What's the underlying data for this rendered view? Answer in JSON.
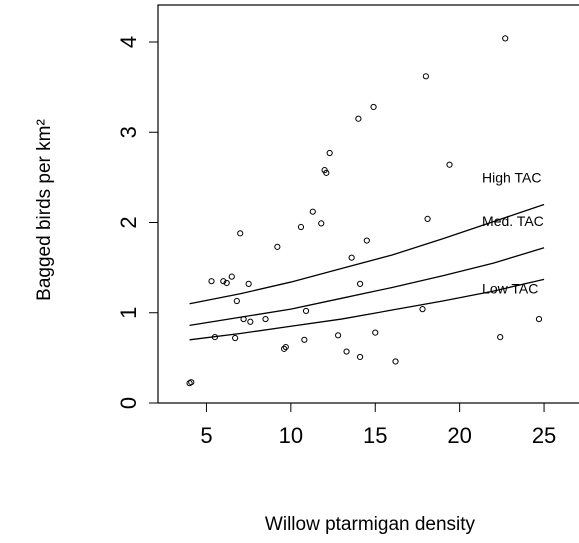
{
  "chart_data": {
    "type": "scatter",
    "xlabel": "Willow ptarmigan density",
    "ylabel": "Bagged birds per km²",
    "xlim": [
      2.13,
      27.07
    ],
    "ylim": [
      0,
      4.41
    ],
    "xticks": [
      5,
      10,
      15,
      20,
      25
    ],
    "yticks": [
      0,
      1,
      2,
      3,
      4
    ],
    "color": "#000000",
    "x": [
      4.1,
      4.0,
      5.3,
      5.5,
      6.0,
      6.2,
      6.5,
      6.7,
      6.8,
      7.0,
      7.2,
      7.5,
      7.6,
      8.5,
      9.2,
      9.6,
      9.7,
      10.6,
      10.8,
      10.9,
      11.3,
      11.8,
      12.0,
      12.1,
      12.3,
      12.8,
      13.3,
      13.6,
      14.0,
      14.1,
      14.1,
      14.5,
      14.9,
      15.0,
      16.2,
      17.8,
      18.0,
      18.1,
      19.4,
      22.4,
      22.7,
      24.7
    ],
    "values": [
      0.23,
      0.22,
      1.35,
      0.73,
      1.35,
      1.33,
      1.4,
      0.72,
      1.13,
      1.88,
      0.93,
      1.32,
      0.9,
      0.93,
      1.73,
      0.6,
      0.62,
      1.95,
      0.7,
      1.02,
      2.12,
      1.99,
      2.58,
      2.55,
      2.77,
      0.75,
      0.57,
      1.61,
      3.15,
      1.32,
      0.51,
      1.8,
      3.28,
      0.78,
      0.46,
      1.04,
      3.62,
      2.04,
      2.64,
      0.73,
      4.04,
      0.93
    ],
    "line_x": [
      4,
      7,
      10,
      13,
      16,
      19,
      22,
      25
    ],
    "lines": [
      {
        "name": "High TAC",
        "values": [
          1.1,
          1.21,
          1.34,
          1.49,
          1.64,
          1.82,
          2.01,
          2.2
        ]
      },
      {
        "name": "Med. TAC",
        "values": [
          0.86,
          0.95,
          1.04,
          1.16,
          1.28,
          1.41,
          1.55,
          1.72
        ]
      },
      {
        "name": "Low TAC",
        "values": [
          0.7,
          0.77,
          0.85,
          0.93,
          1.03,
          1.13,
          1.24,
          1.37
        ]
      }
    ]
  }
}
